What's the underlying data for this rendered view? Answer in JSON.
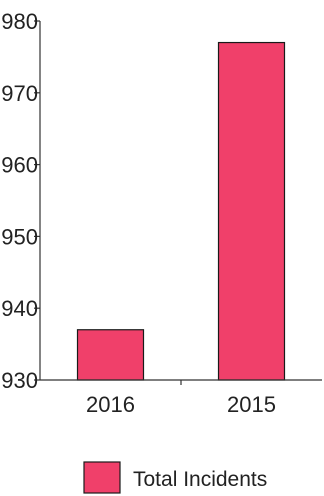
{
  "chart_data": {
    "type": "bar",
    "categories": [
      "2016",
      "2015"
    ],
    "series": [
      {
        "name": "Total Incidents",
        "values": [
          937,
          977
        ]
      }
    ],
    "ylim": [
      930,
      980
    ],
    "yticks": [
      930,
      940,
      950,
      960,
      970,
      980
    ],
    "ytick_labels": [
      "930",
      "940",
      "950",
      "960",
      "970",
      "980"
    ],
    "grid": false,
    "legend": "bottom",
    "bar_color": "#f0406a",
    "bar_border_color": "#1a1a1a",
    "axis_color": "#333333"
  }
}
